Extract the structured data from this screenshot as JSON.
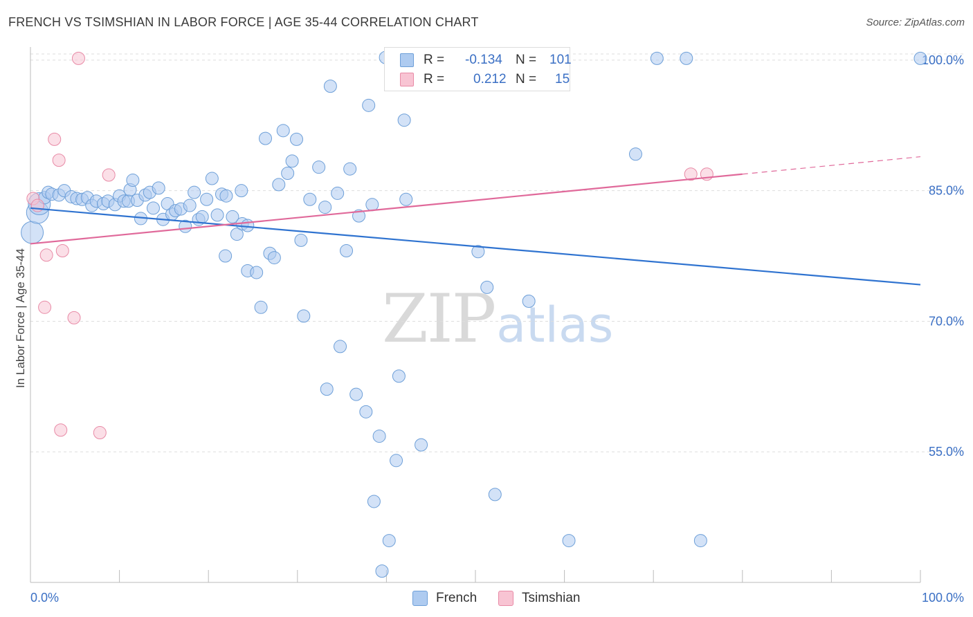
{
  "title": "FRENCH VS TSIMSHIAN IN LABOR FORCE | AGE 35-44 CORRELATION CHART",
  "source": "Source: ZipAtlas.com",
  "watermark": {
    "zip": "ZIP",
    "atlas": "atlas"
  },
  "legend": {
    "r_label": "R =",
    "n_label": "N =",
    "rows": [
      {
        "r": "-0.134",
        "n": "101",
        "color": "#aecbf0",
        "border": "#6d9fd8"
      },
      {
        "r": "0.212",
        "n": "15",
        "color": "#f8c4d3",
        "border": "#e88aa6"
      }
    ]
  },
  "bottom_legend": [
    {
      "label": "French",
      "color": "#aecbf0",
      "border": "#6d9fd8"
    },
    {
      "label": "Tsimshian",
      "color": "#f8c4d3",
      "border": "#e88aa6"
    }
  ],
  "chart_data": {
    "type": "scatter",
    "title": "FRENCH VS TSIMSHIAN IN LABOR FORCE | AGE 35-44 CORRELATION CHART",
    "ylabel": "In Labor Force | Age 35-44",
    "xlabel": "",
    "xlim": [
      0,
      100
    ],
    "ylim": [
      40,
      101.5
    ],
    "x_tick_labels": [
      "0.0%",
      "100.0%"
    ],
    "y_ticks": [
      55,
      70,
      85,
      100
    ],
    "y_tick_labels": [
      "55.0%",
      "70.0%",
      "85.0%",
      "100.0%"
    ],
    "grid": true,
    "legend_position": "top-center",
    "series": [
      {
        "name": "French",
        "color": "#aecbf0",
        "stroke": "#6d9fd8",
        "line_color": "#2f73d0",
        "trend": {
          "x0": 0,
          "y0": 83.0,
          "x1": 100,
          "y1": 74.2
        },
        "points": [
          [
            0.2,
            80.2
          ],
          [
            0.8,
            82.5
          ],
          [
            1.0,
            83.5
          ],
          [
            1.6,
            84.2
          ],
          [
            2.0,
            84.8
          ],
          [
            2.4,
            84.6
          ],
          [
            3.2,
            84.5
          ],
          [
            3.8,
            85.0
          ],
          [
            4.6,
            84.3
          ],
          [
            5.2,
            84.1
          ],
          [
            5.8,
            84.0
          ],
          [
            6.4,
            84.2
          ],
          [
            6.9,
            83.3
          ],
          [
            7.4,
            83.8
          ],
          [
            8.2,
            83.5
          ],
          [
            8.7,
            83.8
          ],
          [
            9.5,
            83.4
          ],
          [
            10.0,
            84.4
          ],
          [
            10.5,
            83.8
          ],
          [
            11.0,
            83.8
          ],
          [
            11.2,
            85.1
          ],
          [
            11.5,
            86.2
          ],
          [
            12.0,
            83.9
          ],
          [
            12.4,
            81.8
          ],
          [
            12.9,
            84.5
          ],
          [
            13.4,
            84.8
          ],
          [
            13.8,
            83.0
          ],
          [
            14.4,
            85.3
          ],
          [
            14.9,
            81.7
          ],
          [
            15.4,
            83.5
          ],
          [
            15.9,
            82.3
          ],
          [
            16.3,
            82.7
          ],
          [
            16.9,
            82.9
          ],
          [
            17.4,
            80.9
          ],
          [
            17.9,
            83.3
          ],
          [
            18.4,
            84.8
          ],
          [
            18.9,
            81.7
          ],
          [
            19.3,
            82.0
          ],
          [
            19.8,
            84.0
          ],
          [
            20.4,
            86.4
          ],
          [
            21.0,
            82.2
          ],
          [
            21.5,
            84.6
          ],
          [
            22.0,
            84.4
          ],
          [
            22.7,
            82.0
          ],
          [
            23.2,
            80.0
          ],
          [
            23.8,
            81.2
          ],
          [
            24.4,
            81.0
          ],
          [
            23.7,
            85.0
          ],
          [
            21.9,
            77.5
          ],
          [
            24.4,
            75.8
          ],
          [
            25.4,
            75.6
          ],
          [
            25.9,
            71.6
          ],
          [
            26.4,
            91.0
          ],
          [
            26.9,
            77.8
          ],
          [
            27.4,
            77.3
          ],
          [
            27.9,
            85.7
          ],
          [
            28.4,
            91.9
          ],
          [
            28.9,
            87.0
          ],
          [
            29.4,
            88.4
          ],
          [
            29.9,
            90.9
          ],
          [
            30.4,
            79.3
          ],
          [
            30.7,
            70.6
          ],
          [
            31.4,
            84.0
          ],
          [
            32.4,
            87.7
          ],
          [
            33.1,
            83.1
          ],
          [
            33.3,
            62.2
          ],
          [
            33.7,
            97.0
          ],
          [
            34.5,
            84.7
          ],
          [
            34.8,
            67.1
          ],
          [
            35.5,
            78.1
          ],
          [
            35.9,
            87.5
          ],
          [
            36.6,
            61.6
          ],
          [
            36.9,
            82.1
          ],
          [
            37.7,
            59.6
          ],
          [
            38.0,
            94.8
          ],
          [
            38.4,
            83.4
          ],
          [
            38.6,
            49.3
          ],
          [
            39.2,
            56.8
          ],
          [
            39.5,
            41.3
          ],
          [
            39.9,
            100.3
          ],
          [
            40.3,
            44.8
          ],
          [
            41.1,
            54.0
          ],
          [
            41.4,
            63.7
          ],
          [
            42.0,
            93.1
          ],
          [
            42.2,
            84.0
          ],
          [
            43.9,
            55.8
          ],
          [
            45.4,
            100.2
          ],
          [
            48.9,
            100.3
          ],
          [
            50.3,
            78.0
          ],
          [
            51.3,
            73.9
          ],
          [
            52.2,
            50.1
          ],
          [
            56.0,
            72.3
          ],
          [
            60.5,
            44.8
          ],
          [
            68.0,
            89.2
          ],
          [
            70.4,
            100.2
          ],
          [
            73.7,
            100.2
          ],
          [
            75.3,
            44.8
          ],
          [
            100.0,
            100.2
          ]
        ],
        "sizes_large_first_n": 3
      },
      {
        "name": "Tsimshian",
        "color": "#f8c4d3",
        "stroke": "#e88aa6",
        "line_color": "#e0699a",
        "trend": {
          "x0": 0,
          "y0": 78.9,
          "x1": 80,
          "y1": 86.9
        },
        "trend_dashed_to": {
          "x": 100,
          "y": 88.9
        },
        "points": [
          [
            0.3,
            84.1
          ],
          [
            0.8,
            83.3
          ],
          [
            1.6,
            71.6
          ],
          [
            1.8,
            77.6
          ],
          [
            2.7,
            90.9
          ],
          [
            3.2,
            88.5
          ],
          [
            3.4,
            57.5
          ],
          [
            3.6,
            78.1
          ],
          [
            4.9,
            70.4
          ],
          [
            5.4,
            100.2
          ],
          [
            7.8,
            57.2
          ],
          [
            8.8,
            86.8
          ],
          [
            74.2,
            86.9
          ],
          [
            76.0,
            86.9
          ]
        ]
      }
    ]
  }
}
